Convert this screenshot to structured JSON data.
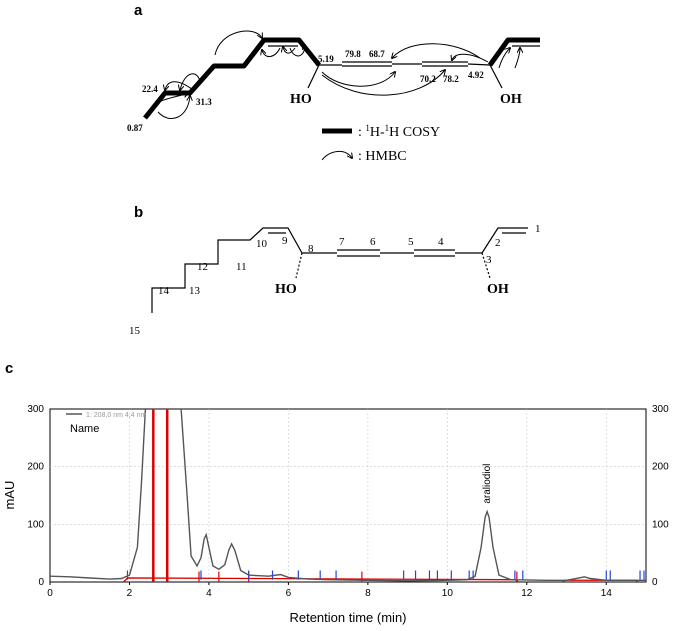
{
  "panels": {
    "a": "a",
    "b": "b",
    "c": "c"
  },
  "panel_a": {
    "shifts": {
      "s22": "22.4",
      "s087": "0.87",
      "s313": "31.3",
      "s519": "5.19",
      "s798": "79.8",
      "s687": "68.7",
      "s702": "70.2",
      "s782": "78.2",
      "s492": "4.92"
    },
    "ho": "HO",
    "oh": "OH",
    "legend_cosy_prefix": ": ",
    "legend_cosy_sup": "1",
    "legend_cosy_mid": "H-",
    "legend_cosy_sup2": "1",
    "legend_cosy_suffix": "H COSY",
    "legend_hmbc": ": HMBC"
  },
  "panel_b": {
    "locants": [
      "1",
      "2",
      "3",
      "4",
      "5",
      "6",
      "7",
      "8",
      "9",
      "10",
      "11",
      "12",
      "13",
      "14",
      "15"
    ],
    "ho": "HO",
    "oh": "OH"
  },
  "chart_data": {
    "type": "line",
    "title": "",
    "xlabel": "Retention time (min)",
    "ylabel": "mAU",
    "xlim": [
      0,
      15
    ],
    "ylim": [
      0,
      300
    ],
    "x_ticks": [
      0,
      2,
      4,
      6,
      8,
      10,
      12,
      14
    ],
    "y_ticks": [
      0,
      100,
      200,
      300
    ],
    "grid": true,
    "legend": {
      "position": "top-left",
      "entries": [
        "1: 208,0 nm 4,4 nm",
        "Name"
      ]
    },
    "series": [
      {
        "name": "1: 208,0 nm 4,4 nm",
        "color": "#555555",
        "points": [
          [
            0.0,
            10
          ],
          [
            0.5,
            9
          ],
          [
            1.0,
            7
          ],
          [
            1.5,
            5
          ],
          [
            1.8,
            6
          ],
          [
            2.0,
            12
          ],
          [
            2.2,
            60
          ],
          [
            2.3,
            170
          ],
          [
            2.4,
            300
          ],
          [
            3.3,
            300
          ],
          [
            3.45,
            150
          ],
          [
            3.55,
            45
          ],
          [
            3.7,
            28
          ],
          [
            3.8,
            42
          ],
          [
            3.88,
            75
          ],
          [
            3.93,
            82
          ],
          [
            4.0,
            60
          ],
          [
            4.1,
            28
          ],
          [
            4.25,
            22
          ],
          [
            4.4,
            30
          ],
          [
            4.5,
            55
          ],
          [
            4.57,
            66
          ],
          [
            4.65,
            55
          ],
          [
            4.8,
            20
          ],
          [
            5.0,
            12
          ],
          [
            5.5,
            10
          ],
          [
            5.8,
            13
          ],
          [
            6.0,
            8
          ],
          [
            6.5,
            5
          ],
          [
            7.0,
            4
          ],
          [
            8.0,
            3
          ],
          [
            9.0,
            2
          ],
          [
            10.0,
            3
          ],
          [
            10.5,
            4
          ],
          [
            10.7,
            10
          ],
          [
            10.85,
            60
          ],
          [
            10.95,
            112
          ],
          [
            11.0,
            122
          ],
          [
            11.05,
            112
          ],
          [
            11.15,
            60
          ],
          [
            11.3,
            12
          ],
          [
            11.6,
            4
          ],
          [
            12.5,
            3
          ],
          [
            13.0,
            3
          ],
          [
            13.3,
            7
          ],
          [
            13.45,
            9
          ],
          [
            13.6,
            6
          ],
          [
            14.0,
            3
          ],
          [
            15.0,
            3
          ]
        ]
      }
    ],
    "red_markers_min": [
      2.6,
      2.95,
      3.75,
      4.25,
      5.0,
      7.85,
      11.75
    ],
    "blue_markers_min": [
      1.95,
      3.8,
      5.0,
      5.6,
      6.25,
      6.8,
      7.2,
      8.9,
      9.2,
      9.55,
      9.75,
      10.1,
      10.55,
      10.65,
      11.7,
      11.9,
      14.0,
      14.1,
      14.85,
      14.95
    ],
    "annotations": [
      {
        "label": "araliodiol",
        "x": 11.0,
        "y": 122
      }
    ]
  }
}
